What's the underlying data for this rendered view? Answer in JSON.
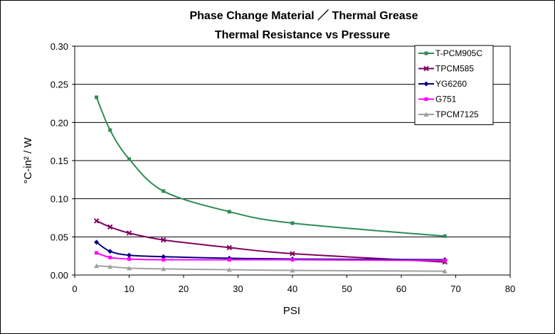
{
  "chart_data": {
    "type": "line",
    "title": "Phase Change Material  ／ Thermal Grease",
    "subtitle": "Thermal Resistance vs Pressure",
    "xlabel": "PSI",
    "ylabel": "°C-in² / W",
    "xlim": [
      0,
      80
    ],
    "ylim": [
      0,
      0.3
    ],
    "xticks": [
      "0",
      "10",
      "20",
      "30",
      "40",
      "50",
      "60",
      "70",
      "80"
    ],
    "yticks": [
      "0.00",
      "0.05",
      "0.10",
      "0.15",
      "0.20",
      "0.25",
      "0.30"
    ],
    "grid": "horizontal",
    "legend_position": "top-right",
    "series": [
      {
        "name": "T-PCM905C",
        "color": "#2e8b57",
        "marker": "square",
        "x": [
          4,
          6.5,
          10,
          16.3,
          28.4,
          40,
          68
        ],
        "y": [
          0.233,
          0.19,
          0.152,
          0.11,
          0.083,
          0.068,
          0.051
        ]
      },
      {
        "name": "TPCM585",
        "color": "#800060",
        "marker": "x",
        "x": [
          4,
          6.5,
          10,
          16.3,
          28.4,
          40,
          68
        ],
        "y": [
          0.071,
          0.063,
          0.055,
          0.046,
          0.036,
          0.028,
          0.017
        ]
      },
      {
        "name": "YG6260",
        "color": "#000080",
        "marker": "diamond",
        "x": [
          4,
          6.5,
          10,
          16.3,
          28.4,
          40,
          68
        ],
        "y": [
          0.043,
          0.031,
          0.026,
          0.024,
          0.022,
          0.021,
          0.02
        ]
      },
      {
        "name": "G751",
        "color": "#ff00ff",
        "marker": "square",
        "x": [
          4,
          6.5,
          10,
          16.3,
          28.4,
          40,
          68
        ],
        "y": [
          0.029,
          0.023,
          0.021,
          0.02,
          0.02,
          0.02,
          0.019
        ]
      },
      {
        "name": "TPCM7125",
        "color": "#a0a0a0",
        "marker": "triangle",
        "x": [
          4,
          6.5,
          10,
          16.3,
          28.4,
          40,
          68
        ],
        "y": [
          0.012,
          0.011,
          0.009,
          0.008,
          0.007,
          0.006,
          0.005
        ]
      }
    ]
  }
}
